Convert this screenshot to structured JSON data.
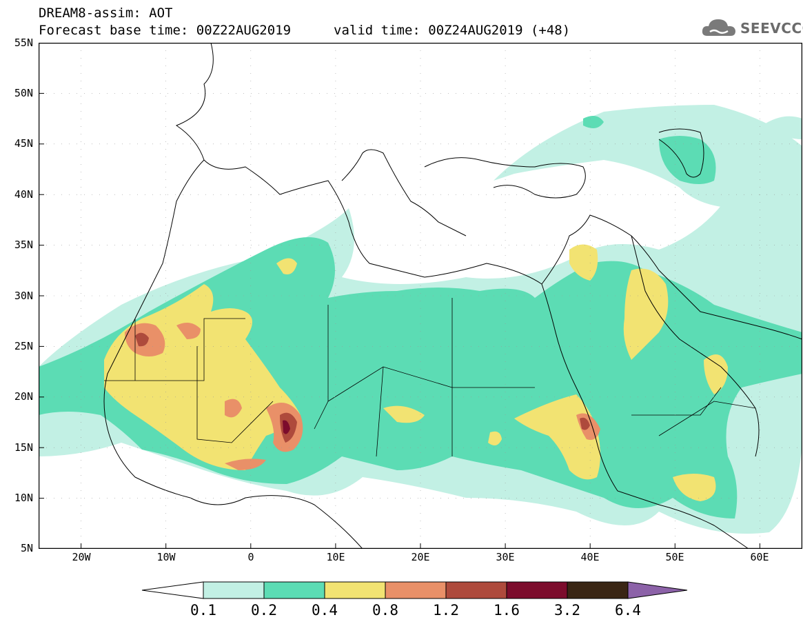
{
  "header": {
    "line1": "DREAM8-assim: AOT",
    "line2": "Forecast base time: 00Z22AUG2019",
    "valid": "valid time: 00Z24AUG2019 (+48)"
  },
  "logo": {
    "text": "SEEVCCC",
    "icon": "cloud-icon"
  },
  "map": {
    "lon_range": [
      -25,
      65
    ],
    "lat_range": [
      5,
      55
    ],
    "lat_labels": [
      "55N",
      "50N",
      "45N",
      "40N",
      "35N",
      "30N",
      "25N",
      "20N",
      "15N",
      "10N",
      "5N"
    ],
    "lon_labels": [
      "20W",
      "10W",
      "0",
      "10E",
      "20E",
      "30E",
      "40E",
      "50E",
      "60E"
    ]
  },
  "legend": {
    "levels": [
      "0.1",
      "0.2",
      "0.4",
      "0.8",
      "1.2",
      "1.6",
      "3.2",
      "6.4"
    ],
    "colors": [
      "#ffffff",
      "#c2f0e4",
      "#5cdcb4",
      "#f2e372",
      "#e99068",
      "#ae4a3c",
      "#7c0c2c",
      "#3a2614",
      "#8c62a8"
    ]
  }
}
